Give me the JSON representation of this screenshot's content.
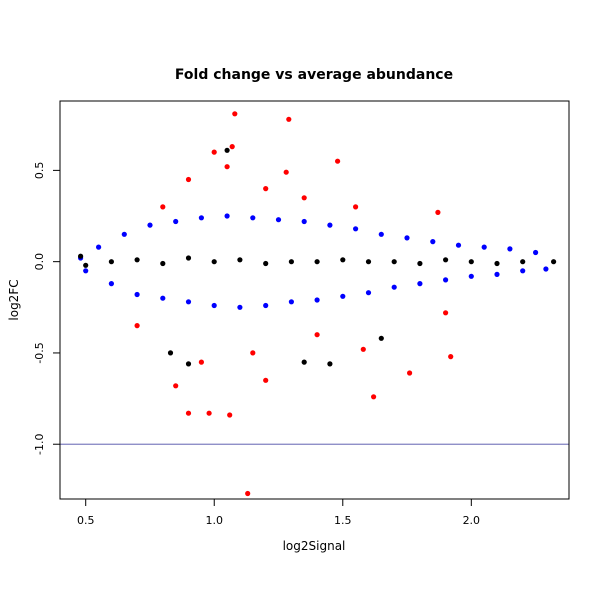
{
  "chart_data": {
    "type": "scatter",
    "title": "Fold change vs average abundance",
    "xlabel": "log2Signal",
    "ylabel": "log2FC",
    "xlim": [
      0.4,
      2.38
    ],
    "ylim": [
      -1.3,
      0.88
    ],
    "x_ticks": [
      "0.5",
      "1.0",
      "1.5",
      "2.0"
    ],
    "y_ticks": [
      "0.5",
      "0.0",
      "-0.5",
      "-1.0"
    ],
    "grid": false,
    "legend": "none",
    "reference_lines": [
      {
        "axis": "y",
        "value": -1.0,
        "color": "#8080c0"
      }
    ],
    "series": [
      {
        "color": "#0000ff",
        "role": "main cloud",
        "values": [
          [
            0.48,
            0.02
          ],
          [
            0.5,
            -0.05
          ],
          [
            0.55,
            0.08
          ],
          [
            0.6,
            -0.12
          ],
          [
            0.65,
            0.15
          ],
          [
            0.7,
            -0.18
          ],
          [
            0.75,
            0.2
          ],
          [
            0.8,
            -0.2
          ],
          [
            0.85,
            0.22
          ],
          [
            0.9,
            -0.22
          ],
          [
            0.95,
            0.24
          ],
          [
            1.0,
            -0.24
          ],
          [
            1.05,
            0.25
          ],
          [
            1.1,
            -0.25
          ],
          [
            1.15,
            0.24
          ],
          [
            1.2,
            -0.24
          ],
          [
            1.25,
            0.23
          ],
          [
            1.3,
            -0.22
          ],
          [
            1.35,
            0.22
          ],
          [
            1.4,
            -0.21
          ],
          [
            1.45,
            0.2
          ],
          [
            1.5,
            -0.19
          ],
          [
            1.55,
            0.18
          ],
          [
            1.6,
            -0.17
          ],
          [
            1.65,
            0.15
          ],
          [
            1.7,
            -0.14
          ],
          [
            1.75,
            0.13
          ],
          [
            1.8,
            -0.12
          ],
          [
            1.85,
            0.11
          ],
          [
            1.9,
            -0.1
          ],
          [
            1.95,
            0.09
          ],
          [
            2.0,
            -0.08
          ],
          [
            2.05,
            0.08
          ],
          [
            2.1,
            -0.07
          ],
          [
            2.15,
            0.07
          ],
          [
            2.2,
            -0.05
          ],
          [
            2.25,
            0.05
          ],
          [
            2.29,
            -0.04
          ]
        ]
      },
      {
        "color": "#ff0000",
        "role": "outliers",
        "values": [
          [
            1.08,
            0.81
          ],
          [
            1.29,
            0.78
          ],
          [
            1.0,
            0.6
          ],
          [
            1.07,
            0.63
          ],
          [
            1.28,
            0.49
          ],
          [
            1.48,
            0.55
          ],
          [
            0.9,
            0.45
          ],
          [
            1.2,
            0.4
          ],
          [
            0.85,
            -0.68
          ],
          [
            0.9,
            -0.83
          ],
          [
            0.98,
            -0.83
          ],
          [
            1.06,
            -0.84
          ],
          [
            1.13,
            -1.27
          ],
          [
            1.62,
            -0.74
          ],
          [
            1.76,
            -0.61
          ],
          [
            1.92,
            -0.52
          ],
          [
            1.9,
            -0.28
          ],
          [
            1.87,
            0.27
          ],
          [
            1.58,
            -0.48
          ],
          [
            1.2,
            -0.65
          ],
          [
            0.8,
            0.3
          ],
          [
            1.35,
            0.35
          ],
          [
            1.4,
            -0.4
          ],
          [
            0.95,
            -0.55
          ],
          [
            1.15,
            -0.5
          ],
          [
            0.7,
            -0.35
          ],
          [
            1.05,
            0.52
          ],
          [
            1.55,
            0.3
          ]
        ]
      },
      {
        "color": "#000000",
        "role": "central band",
        "values": [
          [
            0.48,
            0.03
          ],
          [
            0.5,
            -0.02
          ],
          [
            0.6,
            0.0
          ],
          [
            0.7,
            0.01
          ],
          [
            0.8,
            -0.01
          ],
          [
            0.9,
            0.02
          ],
          [
            1.0,
            0.0
          ],
          [
            1.05,
            0.61
          ],
          [
            1.1,
            0.01
          ],
          [
            1.2,
            -0.01
          ],
          [
            1.3,
            0.0
          ],
          [
            1.35,
            -0.55
          ],
          [
            1.45,
            -0.56
          ],
          [
            1.4,
            0.0
          ],
          [
            1.5,
            0.01
          ],
          [
            1.6,
            0.0
          ],
          [
            1.65,
            -0.42
          ],
          [
            1.7,
            0.0
          ],
          [
            1.8,
            -0.01
          ],
          [
            1.9,
            0.01
          ],
          [
            2.0,
            0.0
          ],
          [
            2.1,
            -0.01
          ],
          [
            2.2,
            0.0
          ],
          [
            2.32,
            0.0
          ],
          [
            0.83,
            -0.5
          ],
          [
            0.9,
            -0.56
          ]
        ]
      }
    ]
  }
}
